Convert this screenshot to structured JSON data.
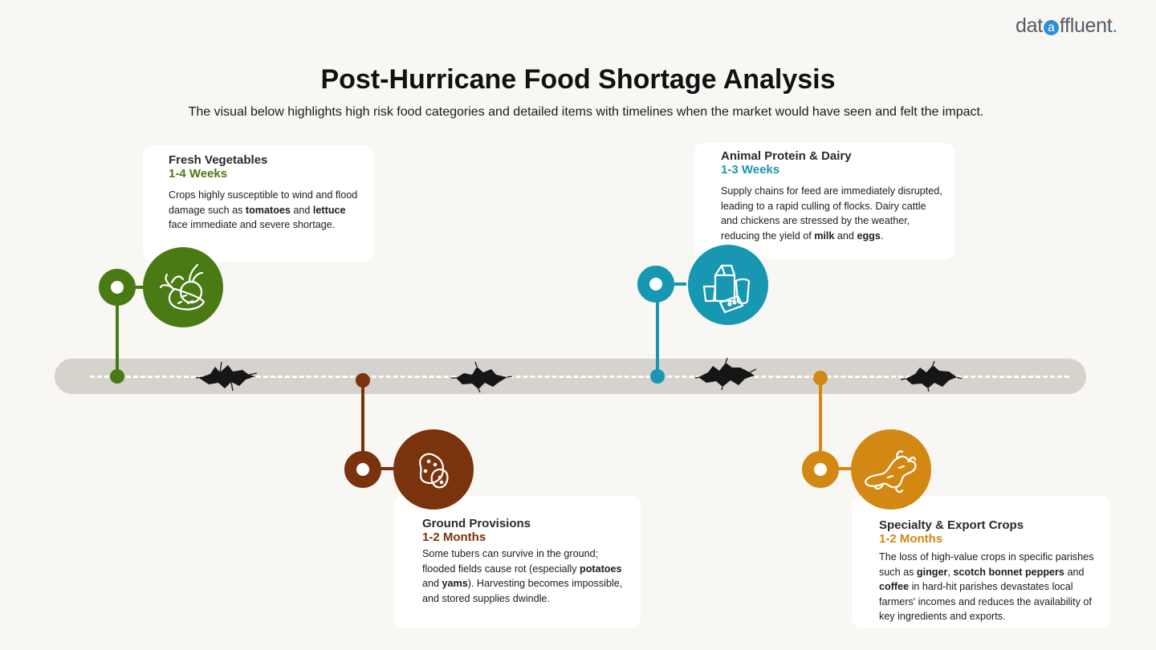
{
  "brand": {
    "logo_pre": "dat",
    "logo_at": "a",
    "logo_post": "ffluent",
    "logo_dot": "."
  },
  "title": "Post-Hurricane Food Shortage Analysis",
  "subtitle": "The visual below highlights high risk food categories and detailed items with timelines when the market would have seen and felt the impact.",
  "colors": {
    "vegetables": "#4a7a14",
    "ground": "#7a330c",
    "animal": "#1797b2",
    "specialty": "#d28812",
    "road": "#d6d2cc",
    "background": "#f8f7f4"
  },
  "categories": [
    {
      "id": "vegetables",
      "name": "Fresh Vegetables",
      "timeline": "1-4 Weeks",
      "icon": "vegetables-icon",
      "desc": [
        {
          "t": "Crops highly susceptible to wind and flood damage such as "
        },
        {
          "t": "tomatoes",
          "b": true
        },
        {
          "t": " and "
        },
        {
          "t": "lettuce",
          "b": true
        },
        {
          "t": " face immediate and severe shortage."
        }
      ]
    },
    {
      "id": "ground",
      "name": "Ground Provisions",
      "timeline": "1-2 Months",
      "icon": "potato-icon",
      "desc": [
        {
          "t": "Some tubers can survive in the ground; flooded fields cause rot (especially "
        },
        {
          "t": "potatoes",
          "b": true
        },
        {
          "t": " and "
        },
        {
          "t": "yams",
          "b": true
        },
        {
          "t": "). Harvesting becomes impossible, and stored supplies dwindle."
        }
      ]
    },
    {
      "id": "animal",
      "name": "Animal Protein & Dairy",
      "timeline": "1-3 Weeks",
      "icon": "dairy-icon",
      "desc": [
        {
          "t": "Supply chains for feed are immediately disrupted, leading to a rapid culling of flocks. Dairy cattle and chickens are stressed by the weather, reducing the yield of "
        },
        {
          "t": "milk",
          "b": true
        },
        {
          "t": " and "
        },
        {
          "t": "eggs",
          "b": true
        },
        {
          "t": "."
        }
      ]
    },
    {
      "id": "specialty",
      "name": "Specialty & Export Crops",
      "timeline": "1-2 Months",
      "icon": "ginger-icon",
      "desc": [
        {
          "t": "The loss of high-value crops in specific parishes such as "
        },
        {
          "t": "ginger",
          "b": true
        },
        {
          "t": ", "
        },
        {
          "t": "scotch bonnet peppers",
          "b": true
        },
        {
          "t": " and "
        },
        {
          "t": "coffee",
          "b": true
        },
        {
          "t": " in hard-hit parishes devastates local farmers' incomes and reduces the availability of key ingredients and exports."
        }
      ]
    }
  ]
}
